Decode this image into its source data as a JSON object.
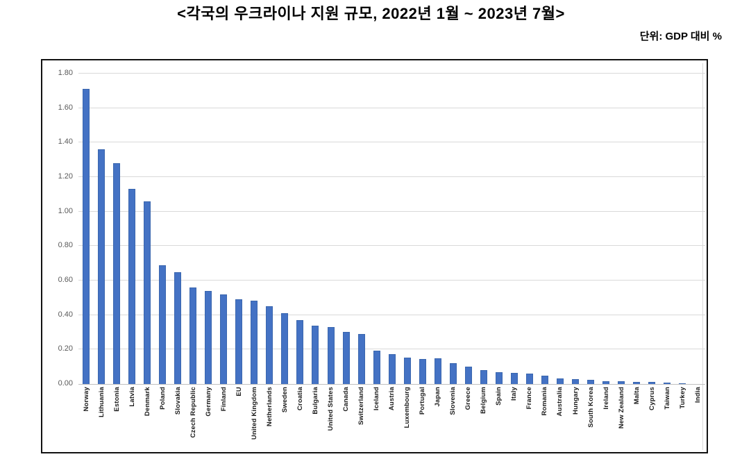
{
  "title": "<각국의 우크라이나 지원 규모, 2022년 1월 ~ 2023년 7월>",
  "unit_label": "단위: GDP 대비 %",
  "chart_data": {
    "type": "bar",
    "title": "각국의 우크라이나 지원 규모, 2022년 1월 ~ 2023년 7월",
    "ylabel": "GDP 대비 %",
    "xlabel": "",
    "ylim": [
      0,
      1.8
    ],
    "ytick_interval": 0.2,
    "ytick_labels": [
      "0.00",
      "0.20",
      "0.40",
      "0.60",
      "0.80",
      "1.00",
      "1.20",
      "1.40",
      "1.60",
      "1.80"
    ],
    "grid": true,
    "legend": false,
    "bar_color": "#4472C4",
    "bar_border_color": "#3A66AE",
    "gridline_color": "#D9D9D9",
    "categories": [
      "Norway",
      "Lithuania",
      "Estonia",
      "Latvia",
      "Denmark",
      "Poland",
      "Slovakia",
      "Czech Republic",
      "Germany",
      "Finland",
      "EU",
      "United Kingdom",
      "Netherlands",
      "Sweden",
      "Croatia",
      "Bulgaria",
      "United States",
      "Canada",
      "Switzerland",
      "Iceland",
      "Austria",
      "Luxembourg",
      "Portugal",
      "Japan",
      "Slovenia",
      "Greece",
      "Belgium",
      "Spain",
      "Italy",
      "France",
      "Romania",
      "Australia",
      "Hungary",
      "South Korea",
      "Ireland",
      "New Zealand",
      "Malta",
      "Cyprus",
      "Taiwan",
      "Turkey",
      "India"
    ],
    "values": [
      1.71,
      1.36,
      1.28,
      1.13,
      1.06,
      0.69,
      0.65,
      0.56,
      0.54,
      0.52,
      0.49,
      0.485,
      0.45,
      0.41,
      0.37,
      0.34,
      0.33,
      0.3,
      0.29,
      0.195,
      0.175,
      0.155,
      0.145,
      0.147,
      0.12,
      0.1,
      0.08,
      0.07,
      0.066,
      0.06,
      0.047,
      0.034,
      0.029,
      0.024,
      0.016,
      0.015,
      0.011,
      0.011,
      0.007,
      0.005,
      0.002
    ]
  }
}
